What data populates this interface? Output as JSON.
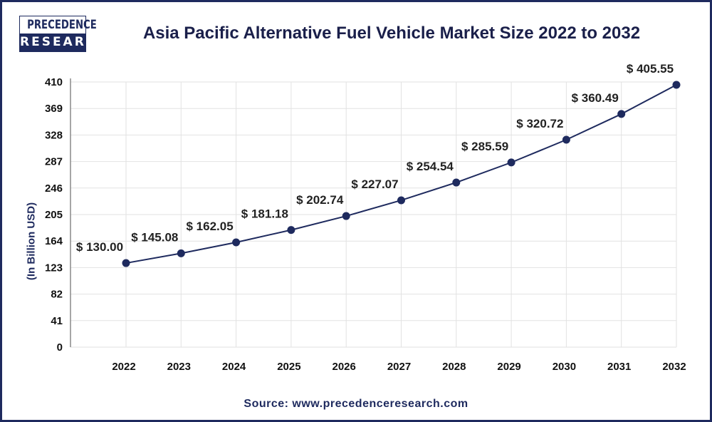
{
  "brand": {
    "line1": "PRECEDENCE",
    "line2": "RESEARCH"
  },
  "source": "Source: www.precedenceresearch.com",
  "colors": {
    "line": "#1e2a5e",
    "frame": "#1e2a5e",
    "grid": "#e2e2e2"
  },
  "chart_data": {
    "type": "line",
    "title": "Asia Pacific Alternative Fuel Vehicle Market Size 2022 to 2032",
    "ylabel": "(In Billion USD)",
    "xlabel": "",
    "categories": [
      "2022",
      "2023",
      "2024",
      "2025",
      "2026",
      "2027",
      "2028",
      "2029",
      "2030",
      "2031",
      "2032"
    ],
    "values": [
      130.0,
      145.08,
      162.05,
      181.18,
      202.74,
      227.07,
      254.54,
      285.59,
      320.72,
      360.49,
      405.55
    ],
    "data_labels": [
      "$ 130.00",
      "$ 145.08",
      "$ 162.05",
      "$ 181.18",
      "$ 202.74",
      "$ 227.07",
      "$ 254.54",
      "$ 285.59",
      "$ 320.72",
      "$ 360.49",
      "$ 405.55"
    ],
    "yticks": [
      0,
      41,
      82,
      123,
      164,
      205,
      246,
      287,
      328,
      369,
      410
    ],
    "ylim": [
      0,
      410
    ],
    "grid": true,
    "legend": "none"
  }
}
